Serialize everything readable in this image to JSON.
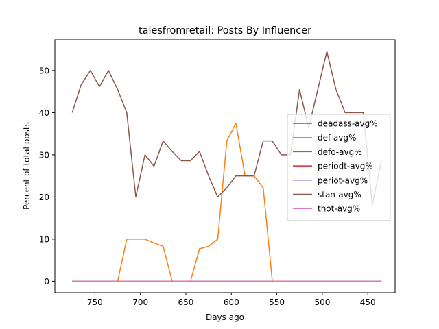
{
  "chart_data": {
    "type": "line",
    "title": "talesfromretail: Posts By Influencer",
    "xlabel": "Days ago",
    "ylabel": "Percent of total posts",
    "x_inverted": true,
    "xlim": [
      794,
      420
    ],
    "ylim": [
      -2.7,
      57.3
    ],
    "xticks": [
      750,
      700,
      650,
      600,
      550,
      500,
      450
    ],
    "yticks": [
      0,
      10,
      20,
      30,
      40,
      50
    ],
    "legend_position": "center-right",
    "x": [
      775,
      765,
      755,
      745,
      735,
      725,
      715,
      705,
      695,
      685,
      675,
      665,
      655,
      645,
      635,
      625,
      615,
      605,
      595,
      585,
      575,
      565,
      555,
      545,
      535,
      525,
      515,
      505,
      495,
      485,
      475,
      465,
      455,
      445,
      435
    ],
    "series": [
      {
        "name": "deadass-avg%",
        "color": "#1f77b4",
        "values": [
          0,
          0,
          0,
          0,
          0,
          0,
          0,
          0,
          0,
          0,
          0,
          0,
          0,
          0,
          0,
          0,
          0,
          0,
          0,
          0,
          0,
          0,
          0,
          0,
          0,
          0,
          0,
          0,
          0,
          0,
          0,
          0,
          0,
          0,
          0
        ]
      },
      {
        "name": "def-avg%",
        "color": "#ff7f0e",
        "values": [
          0,
          0,
          0,
          0,
          0,
          0,
          10,
          10,
          10,
          9.1,
          8.3,
          0,
          0,
          0,
          7.7,
          8.3,
          10,
          33.3,
          37.5,
          25,
          25,
          22.2,
          0,
          0,
          0,
          0,
          0,
          0,
          0,
          0,
          0,
          0,
          0,
          0,
          0
        ]
      },
      {
        "name": "defo-avg%",
        "color": "#2ca02c",
        "values": [
          0,
          0,
          0,
          0,
          0,
          0,
          0,
          0,
          0,
          0,
          0,
          0,
          0,
          0,
          0,
          0,
          0,
          0,
          0,
          0,
          0,
          0,
          0,
          0,
          0,
          0,
          0,
          0,
          0,
          0,
          0,
          0,
          0,
          0,
          0
        ]
      },
      {
        "name": "periodt-avg%",
        "color": "#d62728",
        "values": [
          0,
          0,
          0,
          0,
          0,
          0,
          0,
          0,
          0,
          0,
          0,
          0,
          0,
          0,
          0,
          0,
          0,
          0,
          0,
          0,
          0,
          0,
          0,
          0,
          0,
          0,
          0,
          0,
          0,
          0,
          0,
          0,
          0,
          0,
          0
        ]
      },
      {
        "name": "periot-avg%",
        "color": "#9467bd",
        "values": [
          0,
          0,
          0,
          0,
          0,
          0,
          0,
          0,
          0,
          0,
          0,
          0,
          0,
          0,
          0,
          0,
          0,
          0,
          0,
          0,
          0,
          0,
          0,
          0,
          0,
          0,
          0,
          0,
          0,
          0,
          0,
          0,
          0,
          0,
          0
        ]
      },
      {
        "name": "stan-avg%",
        "color": "#8c564b",
        "values": [
          40,
          46.7,
          50,
          46.2,
          50,
          45.5,
          40,
          20,
          30,
          27.3,
          33.3,
          30.8,
          28.6,
          28.6,
          30.8,
          25,
          20,
          22.2,
          25,
          25,
          25,
          33.3,
          33.3,
          30,
          30,
          45.5,
          36.4,
          45.5,
          54.5,
          45.5,
          40,
          40,
          40,
          18.2,
          28.6
        ]
      },
      {
        "name": "thot-avg%",
        "color": "#e377c2",
        "values": [
          0,
          0,
          0,
          0,
          0,
          0,
          0,
          0,
          0,
          0,
          0,
          0,
          0,
          0,
          0,
          0,
          0,
          0,
          0,
          0,
          0,
          0,
          0,
          0,
          0,
          0,
          0,
          0,
          0,
          0,
          0,
          0,
          0,
          0,
          0
        ]
      }
    ]
  }
}
